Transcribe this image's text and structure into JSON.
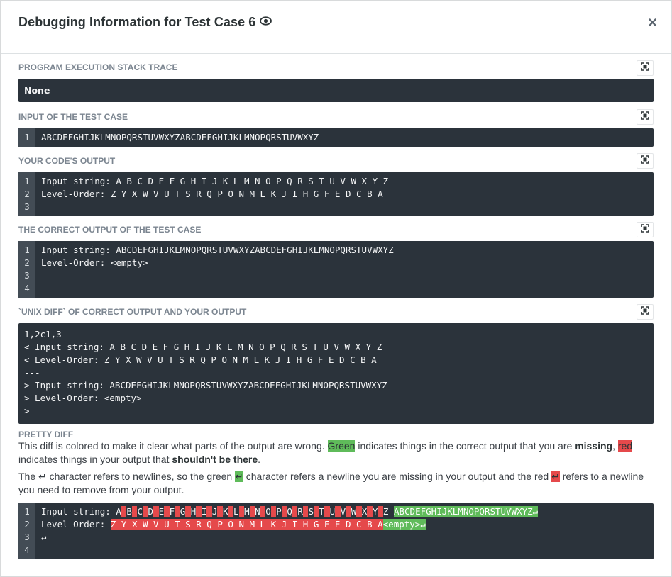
{
  "modal": {
    "title": "Debugging Information for Test Case 6",
    "close_label": "×"
  },
  "sections": {
    "stack_trace": {
      "label": "PROGRAM EXECUTION STACK TRACE",
      "value": "None"
    },
    "input": {
      "label": "INPUT OF THE TEST CASE",
      "lines": [
        {
          "n": "1",
          "text": "ABCDEFGHIJKLMNOPQRSTUVWXYZABCDEFGHIJKLMNOPQRSTUVWXYZ"
        }
      ]
    },
    "your_output": {
      "label": "YOUR CODE'S OUTPUT",
      "lines": [
        {
          "n": "1",
          "text": "Input string: A B C D E F G H I J K L M N O P Q R S T U V W X Y Z"
        },
        {
          "n": "2",
          "text": "Level-Order: Z Y X W V U T S R Q P O N M L K J I H G F E D C B A"
        },
        {
          "n": "3",
          "text": ""
        }
      ]
    },
    "correct_output": {
      "label": "THE CORRECT OUTPUT OF THE TEST CASE",
      "lines": [
        {
          "n": "1",
          "text": "Input string: ABCDEFGHIJKLMNOPQRSTUVWXYZABCDEFGHIJKLMNOPQRSTUVWXYZ"
        },
        {
          "n": "2",
          "text": "Level-Order: <empty>"
        },
        {
          "n": "3",
          "text": ""
        },
        {
          "n": "4",
          "text": ""
        }
      ]
    },
    "unix_diff": {
      "label": "`UNIX DIFF` OF CORRECT OUTPUT AND YOUR OUTPUT",
      "lines": [
        "1,2c1,3",
        "< Input string: A B C D E F G H I J K L M N O P Q R S T U V W X Y Z",
        "< Level-Order: Z Y X W V U T S R Q P O N M L K J I H G F E D C B A",
        "---",
        "> Input string: ABCDEFGHIJKLMNOPQRSTUVWXYZABCDEFGHIJKLMNOPQRSTUVWXYZ",
        "> Level-Order: <empty>",
        ">"
      ]
    },
    "pretty_diff": {
      "label": "PRETTY DIFF",
      "p1_a": "This diff is colored to make it clear what parts of the output are wrong. ",
      "p1_green": "Green",
      "p1_b": " indicates things in the correct output that you are ",
      "p1_missing": "missing",
      "p1_c": ", ",
      "p1_red": "red",
      "p1_d": " indicates things in your output that ",
      "p1_shouldnt": "shouldn't be there",
      "p1_e": ".",
      "p2_a": "The ↵ character refers to newlines, so the green ",
      "p2_green": "↵",
      "p2_b": " character refers a newline you are missing in your output and the red ",
      "p2_red": "↵",
      "p2_c": " refers to a newline you need to remove from your output.",
      "line_numbers": [
        "1",
        "2",
        "3",
        "4"
      ],
      "line1_prefix": "Input string: A",
      "line1_letters": [
        "B",
        "C",
        "D",
        "E",
        "F",
        "G",
        "H",
        "I",
        "J",
        "K",
        "L",
        "M",
        "N",
        "O",
        "P",
        "Q",
        "R",
        "S",
        "T",
        "U",
        "V",
        "W",
        "X",
        "Y",
        "Z"
      ],
      "line1_added": "ABCDEFGHIJKLMNOPQRSTUVWXYZ↵",
      "line2_prefix": "Level-Order: ",
      "line2_removed": "Z Y X W V U T S R Q P O N M L K J I H G F E D C B A",
      "line2_added": "<empty>↵",
      "line3": "↵",
      "line4": ""
    }
  },
  "icons": {
    "expand": "expand-icon",
    "eye": "eye-icon",
    "close": "close-icon"
  },
  "colors": {
    "code_bg": "#2b333b",
    "gutter_bg": "#434c55",
    "added": "#5fbb5a",
    "removed": "#e5494b"
  }
}
